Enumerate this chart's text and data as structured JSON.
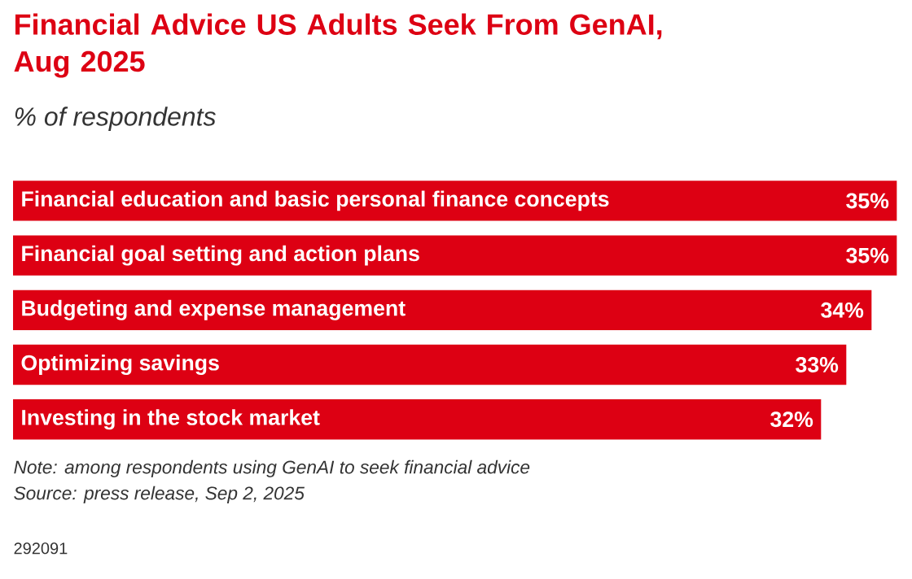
{
  "chart_data": {
    "type": "bar",
    "orientation": "horizontal",
    "title": "Financial Advice US Adults Seek From GenAI, Aug 2025",
    "subtitle": "% of respondents",
    "categories": [
      "Financial education and basic personal finance concepts",
      "Financial goal setting and action plans",
      "Budgeting and expense management",
      "Optimizing savings",
      "Investing in the stock market"
    ],
    "values": [
      35,
      35,
      34,
      33,
      32
    ],
    "value_labels": [
      "35%",
      "35%",
      "34%",
      "33%",
      "32%"
    ],
    "color": "#dd0013",
    "annotations": [
      "Note: among respondents using GenAI to seek financial advice",
      "Source: press release, Sep 2, 2025",
      "292091"
    ]
  }
}
